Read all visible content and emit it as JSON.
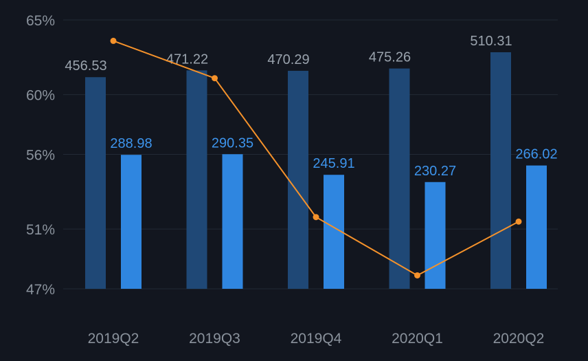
{
  "chart_data": {
    "type": "bar",
    "categories": [
      "2019Q2",
      "2019Q3",
      "2019Q4",
      "2020Q1",
      "2020Q2"
    ],
    "series": [
      {
        "type": "bar",
        "axis": "left",
        "color": "#1f4876",
        "label_color": "#9aa3ad",
        "values": [
          456.53,
          471.22,
          470.29,
          475.26,
          510.31
        ]
      },
      {
        "type": "bar",
        "axis": "left",
        "color": "#2f86e0",
        "label_color": "#3d94ec",
        "values": [
          288.98,
          290.35,
          245.91,
          230.27,
          266.02
        ]
      },
      {
        "type": "line",
        "axis": "right",
        "color": "#f5922b",
        "values": [
          63.6,
          61.1,
          51.8,
          47.9,
          51.5
        ]
      }
    ],
    "y_right": {
      "ticks": [
        "65%",
        "60%",
        "56%",
        "51%",
        "47%"
      ],
      "tick_values": [
        65,
        60,
        56,
        51,
        47
      ],
      "ylim": [
        47,
        65
      ],
      "position": "left"
    },
    "y_left_ylim": [
      0,
      580
    ],
    "grid": true,
    "legend": "none"
  }
}
